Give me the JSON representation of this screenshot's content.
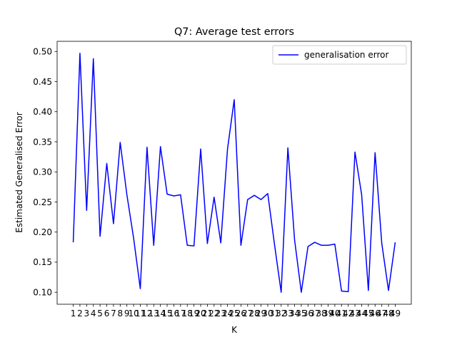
{
  "chart_data": {
    "type": "line",
    "title": "Q7: Average test errors",
    "xlabel": "K",
    "ylabel": "Estimated Generalised Error",
    "x": [
      1,
      2,
      3,
      4,
      5,
      6,
      7,
      8,
      9,
      10,
      11,
      12,
      13,
      14,
      15,
      16,
      17,
      18,
      19,
      20,
      21,
      22,
      23,
      24,
      25,
      26,
      27,
      28,
      29,
      30,
      31,
      32,
      33,
      34,
      35,
      36,
      37,
      38,
      39,
      40,
      41,
      42,
      43,
      44,
      45,
      46,
      47,
      48,
      49
    ],
    "x_tick_labels": [
      "1",
      "2",
      "3",
      "4",
      "5",
      "6",
      "7",
      "8",
      "9",
      "10",
      "11",
      "12",
      "13",
      "14",
      "15",
      "16",
      "17",
      "18",
      "19",
      "20",
      "21",
      "22",
      "23",
      "24",
      "25",
      "26",
      "27",
      "28",
      "29",
      "30",
      "31",
      "32",
      "33",
      "34",
      "35",
      "36",
      "37",
      "38",
      "39",
      "40",
      "41",
      "42",
      "43",
      "44",
      "45",
      "46",
      "47",
      "48",
      "49"
    ],
    "series": [
      {
        "name": "generalisation error",
        "color": "#0000ff",
        "values": [
          0.183,
          0.497,
          0.236,
          0.488,
          0.193,
          0.314,
          0.214,
          0.349,
          0.262,
          0.19,
          0.106,
          0.341,
          0.178,
          0.342,
          0.263,
          0.26,
          0.262,
          0.178,
          0.177,
          0.338,
          0.181,
          0.258,
          0.182,
          0.338,
          0.42,
          0.178,
          0.254,
          0.261,
          0.254,
          0.264,
          0.18,
          0.1,
          0.34,
          0.187,
          0.1,
          0.176,
          0.183,
          0.178,
          0.178,
          0.18,
          0.102,
          0.101,
          0.333,
          0.262,
          0.103,
          0.332,
          0.181,
          0.103,
          0.183
        ]
      }
    ],
    "y_ticks": [
      0.1,
      0.15,
      0.2,
      0.25,
      0.3,
      0.35,
      0.4,
      0.45,
      0.5
    ],
    "y_tick_labels": [
      "0.10",
      "0.15",
      "0.20",
      "0.25",
      "0.30",
      "0.35",
      "0.40",
      "0.45",
      "0.50"
    ],
    "xlim": [
      -1.4,
      51.4
    ],
    "ylim": [
      0.0801,
      0.5169
    ],
    "grid": false,
    "legend_position": "top-right"
  }
}
